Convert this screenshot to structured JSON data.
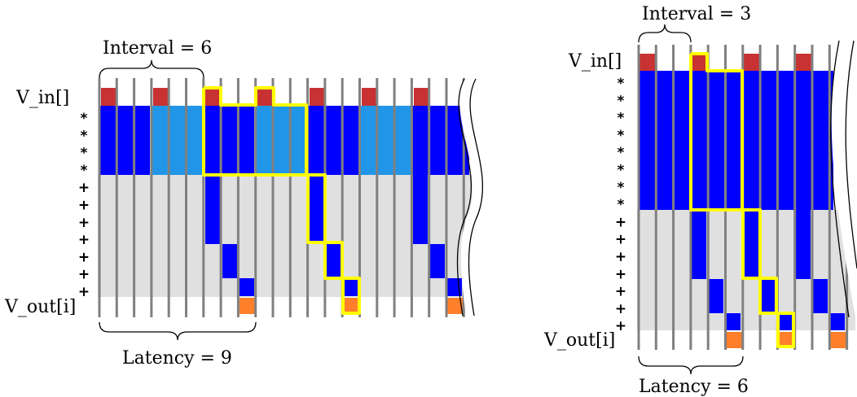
{
  "colors": {
    "input_red": "#C83232",
    "output_orange": "#FF7F2A",
    "mult_blue": "#0000FF",
    "mult_light_blue": "#2196E8",
    "add_blue": "#0000FF",
    "adder_bg": "#E0E0E0",
    "highlight_yellow": "#FFFF00",
    "clock_line": "#808080"
  },
  "left_diagram": {
    "interval_label": "Interval = 6",
    "latency_label": "Latency = 9",
    "input_label": "V_in[]",
    "output_label": "V_out[i]",
    "mult_symbol": "*",
    "add_symbol": "+",
    "mult_stages": 4,
    "add_stages": 7,
    "interval": 6,
    "latency": 9
  },
  "right_diagram": {
    "interval_label": "Interval = 3",
    "latency_label": "Latency = 6",
    "input_label": "V_in[]",
    "output_label": "V_out[i]",
    "mult_symbol": "*",
    "add_symbol": "+",
    "mult_stages": 8,
    "add_stages": 7,
    "interval": 3,
    "latency": 6
  }
}
